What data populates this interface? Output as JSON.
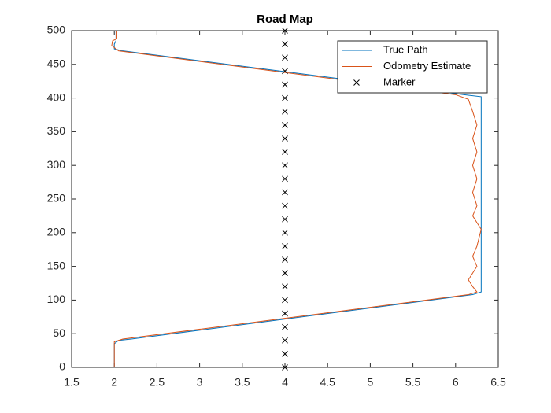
{
  "chart_data": {
    "type": "line",
    "title": "Road Map",
    "xlim": [
      1.5,
      6.5
    ],
    "xticks": [
      1.5,
      2,
      2.5,
      3,
      3.5,
      4,
      4.5,
      5,
      5.5,
      6,
      6.5
    ],
    "ylim": [
      0,
      500
    ],
    "yticks": [
      0,
      50,
      100,
      150,
      200,
      250,
      300,
      350,
      400,
      450,
      500
    ],
    "legend": "northeast",
    "grid": false,
    "series": [
      {
        "name": "True Path",
        "color": "#0072bd",
        "marker": "none",
        "x": [
          2,
          2,
          2.05,
          2.2,
          6.2,
          6.3,
          6.3,
          6.1,
          2.1,
          2.0,
          2.0,
          2.02,
          2.02
        ],
        "y": [
          0,
          35,
          40,
          42,
          108,
          112,
          402,
          405,
          470,
          473,
          480,
          485,
          500
        ]
      },
      {
        "name": "Odometry Estimate",
        "color": "#d95319",
        "marker": "none",
        "x": [
          2,
          2,
          2.1,
          6.15,
          6.25,
          6.2,
          6.15,
          6.2,
          6.25,
          6.2,
          6.25,
          6.3,
          6.25,
          6.2,
          6.25,
          6.2,
          6.25,
          6.2,
          6.25,
          6.2,
          6.25,
          6.2,
          6.15,
          6.0,
          2.05,
          1.97,
          1.98,
          2.03,
          2.03
        ],
        "y": [
          0,
          38,
          42,
          108,
          112,
          120,
          130,
          140,
          150,
          165,
          180,
          205,
          215,
          225,
          240,
          260,
          280,
          300,
          320,
          340,
          360,
          380,
          398,
          405,
          470,
          478,
          485,
          488,
          500
        ]
      },
      {
        "name": "Marker",
        "color": "#000000",
        "marker": "x",
        "x": [
          4,
          4,
          4,
          4,
          4,
          4,
          4,
          4,
          4,
          4,
          4,
          4,
          4,
          4,
          4,
          4,
          4,
          4,
          4,
          4,
          4,
          4,
          4,
          4,
          4,
          4
        ],
        "y": [
          0,
          20,
          40,
          60,
          80,
          100,
          120,
          140,
          160,
          180,
          200,
          220,
          240,
          260,
          280,
          300,
          320,
          340,
          360,
          380,
          400,
          420,
          440,
          460,
          480,
          500
        ]
      }
    ]
  }
}
